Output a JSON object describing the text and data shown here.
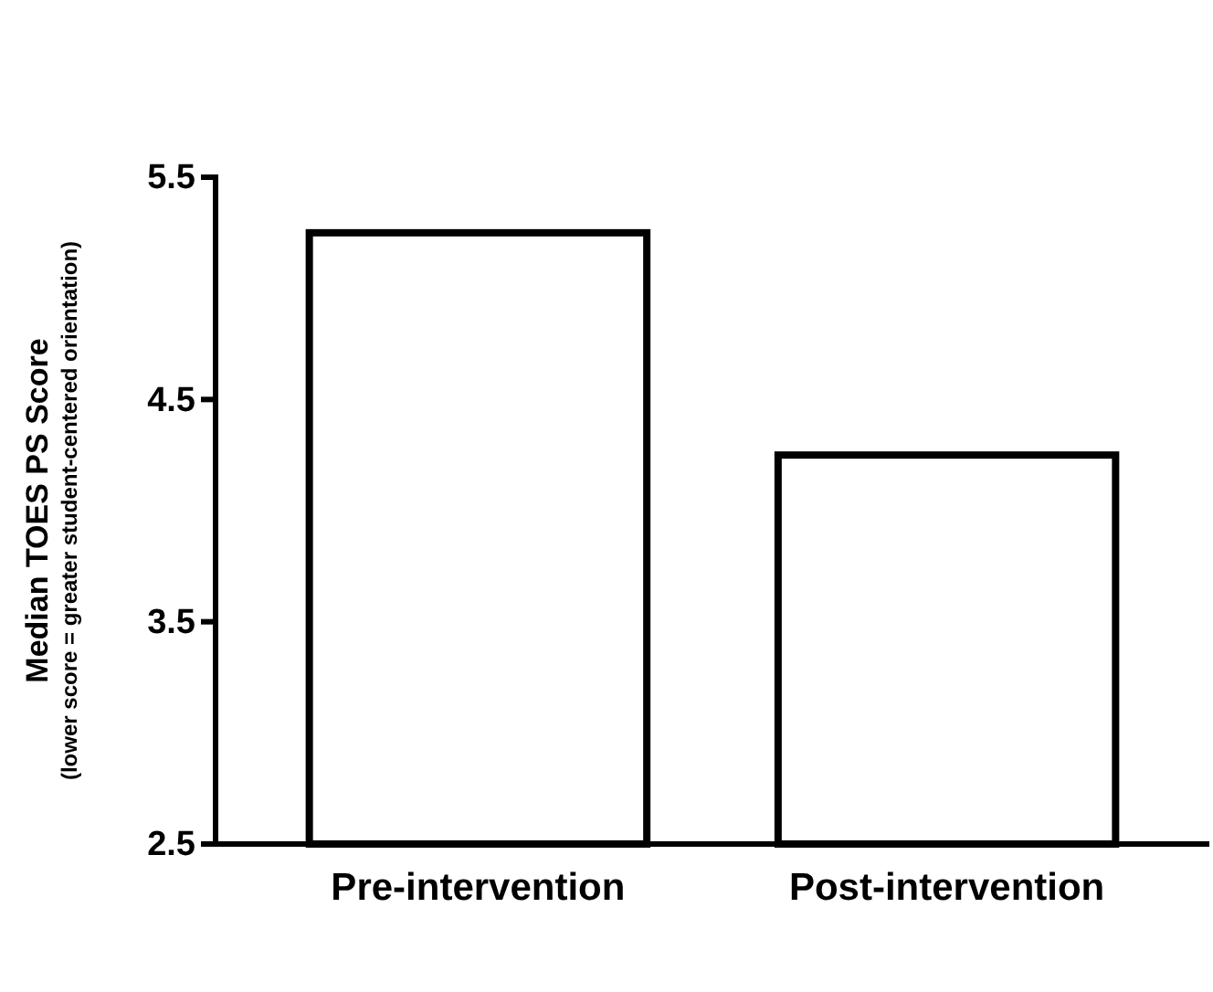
{
  "chart_data": {
    "type": "bar",
    "ylabel": "Median TOES PS Score\n(lower score = greater student-centered orientation)",
    "categories": [
      "Pre-intervention",
      "Post-intervention"
    ],
    "values": [
      5.25,
      4.25
    ],
    "color": "#ffffff",
    "ylim": [
      2.5,
      5.5
    ],
    "yticks": [
      2.5,
      3.5,
      4.5,
      5.5
    ],
    "grid": false
  }
}
